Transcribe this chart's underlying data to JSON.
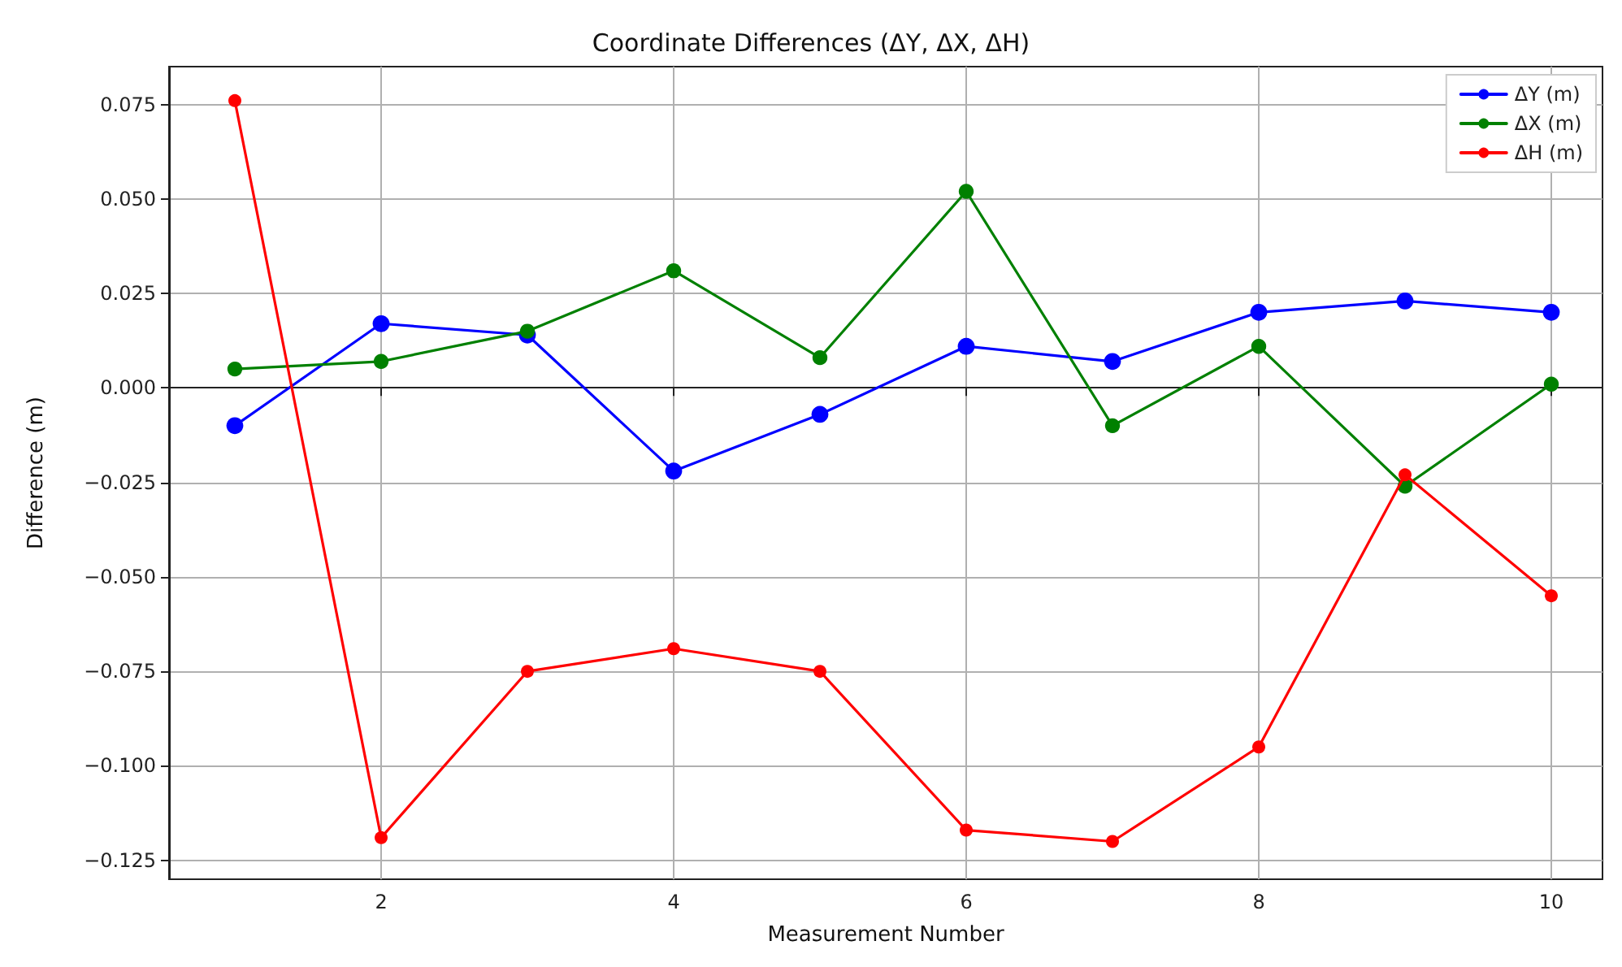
{
  "chart_data": {
    "type": "line",
    "title": "Coordinate Differences (ΔY, ΔX, ΔH)",
    "xlabel": "Measurement Number",
    "ylabel": "Difference (m)",
    "x": [
      1,
      2,
      3,
      4,
      5,
      6,
      7,
      8,
      9,
      10
    ],
    "series": [
      {
        "name": "ΔY (m)",
        "color": "#0000ff",
        "values": [
          -0.01,
          0.017,
          0.014,
          -0.022,
          -0.007,
          0.011,
          0.007,
          0.02,
          0.023,
          0.02
        ]
      },
      {
        "name": "ΔX (m)",
        "color": "#008000",
        "values": [
          0.005,
          0.007,
          0.015,
          0.031,
          0.008,
          0.052,
          -0.01,
          0.011,
          -0.026,
          0.001
        ]
      },
      {
        "name": "ΔH (m)",
        "color": "#ff0000",
        "values": [
          0.076,
          -0.119,
          -0.075,
          -0.069,
          -0.075,
          -0.117,
          -0.12,
          -0.095,
          -0.023,
          -0.055
        ]
      }
    ],
    "xlim": [
      0.55,
      10.35
    ],
    "ylim": [
      -0.13,
      0.085
    ],
    "xticks": [
      2,
      4,
      6,
      8,
      10
    ],
    "yticks": [
      {
        "value": -0.125,
        "label": "−0.125"
      },
      {
        "value": -0.1,
        "label": "−0.100"
      },
      {
        "value": -0.075,
        "label": "−0.075"
      },
      {
        "value": -0.05,
        "label": "−0.050"
      },
      {
        "value": -0.025,
        "label": "−0.025"
      },
      {
        "value": 0,
        "label": "0.000"
      },
      {
        "value": 0.025,
        "label": "0.025"
      },
      {
        "value": 0.05,
        "label": "0.050"
      },
      {
        "value": 0.075,
        "label": "0.075"
      }
    ],
    "grid": true,
    "legend": "top right",
    "marker": "circle",
    "line_style": "solid"
  }
}
